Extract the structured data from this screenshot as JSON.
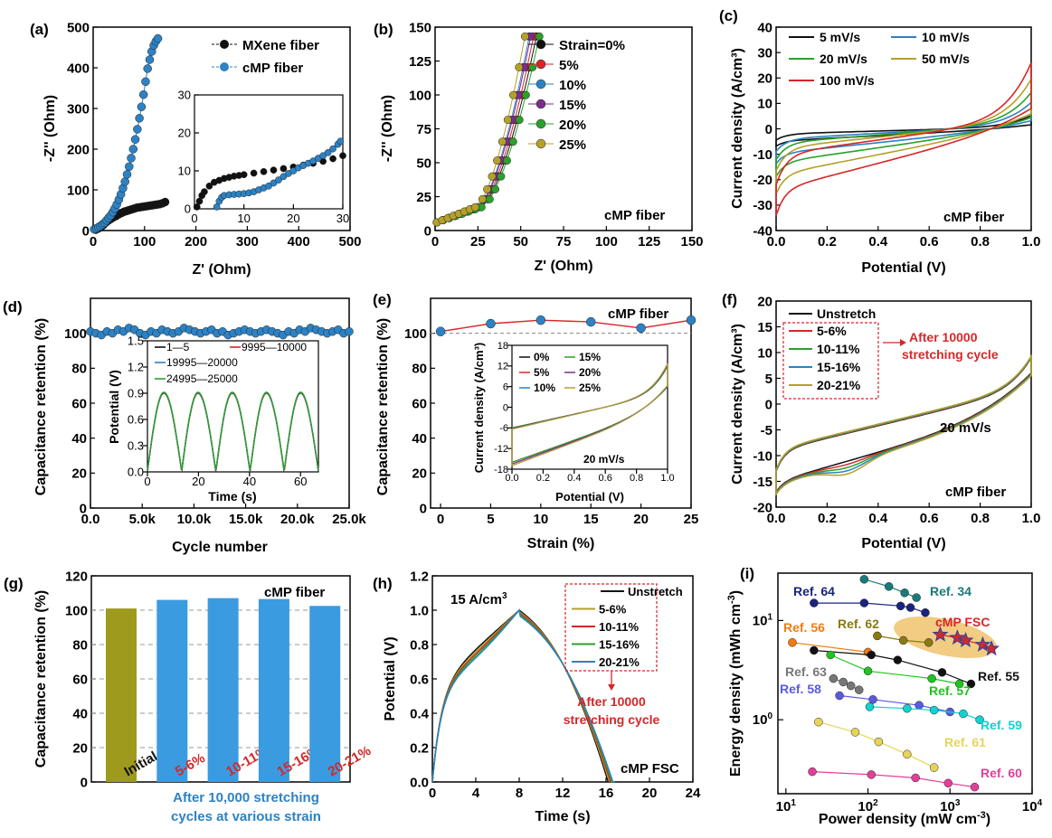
{
  "chart_data": [
    {
      "type": "scatter",
      "label": "(a)",
      "xlabel": "Z' (Ohm)",
      "ylabel": "-Z'' (Ohm)",
      "xlim": [
        0,
        500
      ],
      "ylim": [
        0,
        500
      ],
      "xticks": [
        "0",
        "100",
        "200",
        "300",
        "400",
        "500"
      ],
      "yticks": [
        "0",
        "100",
        "200",
        "300",
        "400",
        "500"
      ],
      "series": [
        {
          "name": "MXene fiber",
          "color": "#111111",
          "x": [
            5,
            10,
            15,
            20,
            25,
            30,
            35,
            40,
            45,
            50,
            55,
            60,
            65,
            70,
            75,
            80,
            85,
            90,
            95,
            100,
            105,
            110,
            115,
            120,
            125,
            130,
            135,
            140
          ],
          "y": [
            2,
            5,
            8,
            14,
            20,
            25,
            29,
            33,
            36,
            40,
            43,
            46,
            48,
            50,
            52,
            54,
            56,
            57,
            58,
            59,
            60,
            61,
            62,
            63,
            64,
            65,
            67,
            70
          ]
        },
        {
          "name": "cMP fiber",
          "color": "#2c82c4",
          "x": [
            2,
            6,
            10,
            14,
            18,
            22,
            26,
            30,
            34,
            38,
            42,
            46,
            50,
            54,
            58,
            62,
            66,
            70,
            74,
            78,
            82,
            86,
            90,
            94,
            98,
            102,
            106,
            110,
            114,
            118,
            122,
            126
          ],
          "y": [
            3,
            5,
            8,
            11,
            15,
            19,
            25,
            31,
            37,
            45,
            54,
            64,
            76,
            89,
            104,
            120,
            138,
            157,
            178,
            200,
            224,
            249,
            276,
            304,
            334,
            366,
            398,
            420,
            440,
            455,
            465,
            472
          ]
        }
      ],
      "inset": {
        "xlim": [
          0,
          30
        ],
        "ylim": [
          0,
          30
        ],
        "xticks": [
          "0",
          "10",
          "20",
          "30"
        ],
        "yticks": [
          "0",
          "10",
          "20",
          "30"
        ],
        "series": [
          {
            "x": [
              0.5,
              1,
              1.5,
              2,
              3,
              4,
              5,
              6,
              7,
              8,
              9,
              10,
              12,
              14,
              16,
              18,
              20,
              22,
              24,
              26,
              28,
              30
            ],
            "y": [
              0.5,
              2,
              3.5,
              4.5,
              6,
              7,
              7.5,
              8,
              8.3,
              8.6,
              8.8,
              9,
              9.4,
              9.8,
              10.2,
              10.6,
              11,
              11.5,
              12,
              12.5,
              13.2,
              14
            ]
          },
          {
            "x": [
              4.5,
              5,
              5.5,
              6,
              7,
              8,
              9,
              10,
              11,
              12,
              13,
              14,
              15,
              16,
              17,
              18,
              19,
              20,
              21,
              22,
              23,
              24,
              25,
              26,
              27,
              28,
              29,
              29.5
            ],
            "y": [
              0.5,
              2,
              3,
              3.5,
              3.7,
              3.8,
              3.9,
              4,
              4.2,
              4.5,
              5,
              5.5,
              6,
              6.8,
              7.6,
              8.5,
              9.3,
              10,
              10.8,
              11.4,
              12,
              12.6,
              13.3,
              14,
              14.8,
              15.8,
              17,
              17.8
            ]
          }
        ]
      }
    },
    {
      "type": "scatter",
      "label": "(b)",
      "xlabel": "Z' (Ohm)",
      "ylabel": "-Z'' (Ohm)",
      "xlim": [
        0,
        150
      ],
      "ylim": [
        0,
        150
      ],
      "xticks": [
        "0",
        "25",
        "50",
        "75",
        "100",
        "125",
        "150"
      ],
      "yticks": [
        "0",
        "25",
        "50",
        "75",
        "100",
        "125",
        "150"
      ],
      "annotation": "cMP fiber",
      "series": [
        {
          "name": "Strain=0%",
          "color": "#111111",
          "offset": 8
        },
        {
          "name": "5%",
          "color": "#d62728",
          "offset": 6
        },
        {
          "name": "10%",
          "color": "#2c82c4",
          "offset": 3
        },
        {
          "name": "15%",
          "color": "#7b2d8e",
          "offset": 4
        },
        {
          "name": "20%",
          "color": "#2ca02c",
          "offset": 10
        },
        {
          "name": "25%",
          "color": "#b5a02a",
          "offset": 0
        }
      ]
    },
    {
      "type": "line",
      "label": "(c)",
      "xlabel": "Potential (V)",
      "ylabel": "Current density (A/cm³)",
      "xlim": [
        0,
        1
      ],
      "ylim": [
        -40,
        40
      ],
      "xticks": [
        "0.0",
        "0.2",
        "0.4",
        "0.6",
        "0.8",
        "1.0"
      ],
      "yticks": [
        "-40",
        "-30",
        "-20",
        "-10",
        "0",
        "10",
        "20",
        "30",
        "40"
      ],
      "annotation": "cMP fiber",
      "series": [
        {
          "name": "5 mV/s",
          "color": "#111111",
          "scale": 0.2
        },
        {
          "name": "10 mV/s",
          "color": "#2c82c4",
          "scale": 0.4
        },
        {
          "name": "20 mV/s",
          "color": "#2ca02c",
          "scale": 0.55
        },
        {
          "name": "50 mV/s",
          "color": "#b5a02a",
          "scale": 0.75
        },
        {
          "name": "100 mV/s",
          "color": "#d62728",
          "scale": 1.0
        }
      ]
    },
    {
      "type": "scatter",
      "label": "(d)",
      "xlabel": "Cycle number",
      "ylabel": "Capacitance retention (%)",
      "xlim": [
        0,
        25000
      ],
      "ylim": [
        0,
        120
      ],
      "xticks": [
        "0.0",
        "5.0k",
        "10.0k",
        "15.0k",
        "20.0k",
        "25.0k"
      ],
      "yticks": [
        "0",
        "20",
        "40",
        "60",
        "80",
        "100"
      ],
      "values": [
        101,
        100,
        99,
        101,
        100,
        102,
        101,
        103,
        102,
        100,
        99,
        101,
        100,
        102,
        101,
        100,
        101,
        103,
        102,
        101,
        100,
        101,
        102,
        100,
        101,
        99,
        100,
        101,
        102,
        101,
        100,
        101,
        102,
        101,
        100,
        99,
        101,
        100,
        102,
        101,
        103,
        102,
        101,
        100,
        101,
        102,
        100,
        101
      ],
      "inset": {
        "xlabel": "Time (s)",
        "ylabel": "Potential (V)",
        "xlim": [
          0,
          67
        ],
        "ylim": [
          0,
          1.5
        ],
        "xticks": [
          "0",
          "20",
          "40",
          "60"
        ],
        "yticks": [
          "0.0",
          "0.3",
          "0.6",
          "0.9",
          "1.2",
          "1.5"
        ],
        "legend": [
          "1—5",
          "9995—10000",
          "19995—20000",
          "24995—25000"
        ],
        "colors": [
          "#111111",
          "#d62728",
          "#2c82c4",
          "#2ca02c"
        ]
      }
    },
    {
      "type": "scatter",
      "label": "(e)",
      "xlabel": "Strain (%)",
      "ylabel": "Capacitance retention (%)",
      "xlim": [
        -1,
        25
      ],
      "ylim": [
        0,
        120
      ],
      "xticks": [
        "0",
        "5",
        "10",
        "15",
        "20",
        "25"
      ],
      "yticks": [
        "0",
        "20",
        "40",
        "60",
        "80",
        "100"
      ],
      "annotation": "cMP fiber",
      "x": [
        0,
        5,
        10,
        15,
        20,
        25
      ],
      "values": [
        101,
        105.5,
        107.5,
        106.5,
        103,
        107.5
      ],
      "inset": {
        "xlabel": "Potential (V)",
        "ylabel": "Current density (A/cm³)",
        "xlim": [
          0,
          1
        ],
        "ylim": [
          -18,
          18
        ],
        "xticks": [
          "0.0",
          "0.2",
          "0.4",
          "0.6",
          "0.8",
          "1.0"
        ],
        "yticks": [
          "-18",
          "-12",
          "-6",
          "0",
          "6",
          "12",
          "18"
        ],
        "annotation": "20 mV/s",
        "legend": [
          "0%",
          "5%",
          "10%",
          "15%",
          "20%",
          "25%"
        ],
        "colors": [
          "#111111",
          "#d62728",
          "#2c82c4",
          "#2ca02c",
          "#7b2d8e",
          "#b5a02a"
        ]
      }
    },
    {
      "type": "line",
      "label": "(f)",
      "xlabel": "Potential (V)",
      "ylabel": "Current density (A/cm³)",
      "xlim": [
        0,
        1
      ],
      "ylim": [
        -20,
        20
      ],
      "xticks": [
        "0.0",
        "0.2",
        "0.4",
        "0.6",
        "0.8",
        "1.0"
      ],
      "yticks": [
        "-20",
        "-15",
        "-10",
        "-5",
        "0",
        "5",
        "10",
        "15",
        "20"
      ],
      "annotations": [
        "After 10000 stretching cycle",
        "20 mV/s",
        "cMP fiber"
      ],
      "series": [
        {
          "name": "Unstretch",
          "color": "#111111"
        },
        {
          "name": "5-6%",
          "color": "#d62728"
        },
        {
          "name": "10-11%",
          "color": "#2ca02c"
        },
        {
          "name": "15-16%",
          "color": "#2c82c4"
        },
        {
          "name": "20-21%",
          "color": "#b5a02a"
        }
      ]
    },
    {
      "type": "bar",
      "label": "(g)",
      "ylabel": "Capacitance retention (%)",
      "ylim": [
        0,
        120
      ],
      "yticks": [
        "0",
        "20",
        "40",
        "60",
        "80",
        "100",
        "120"
      ],
      "categories": [
        "Initial",
        "5-6%",
        "10-11%",
        "15-16%",
        "20-21%"
      ],
      "values": [
        101,
        106,
        107,
        106.5,
        102.5
      ],
      "colors": [
        "#9e9a1e",
        "#3b9be0",
        "#3b9be0",
        "#3b9be0",
        "#3b9be0"
      ],
      "annotation": "cMP fiber",
      "caption": [
        "After 10,000 stretching",
        "cycles at various strain"
      ]
    },
    {
      "type": "line",
      "label": "(h)",
      "xlabel": "Time (s)",
      "ylabel": "Potential (V)",
      "xlim": [
        0,
        24
      ],
      "ylim": [
        0,
        1.2
      ],
      "xticks": [
        "0",
        "4",
        "8",
        "12",
        "16",
        "20",
        "24"
      ],
      "yticks": [
        "0.0",
        "0.2",
        "0.4",
        "0.6",
        "0.8",
        "1.0",
        "1.2"
      ],
      "annotations": [
        "15 A/cm³",
        "After 10000",
        "stretching cycle",
        "cMP FSC"
      ],
      "series": [
        {
          "name": "Unstretch",
          "color": "#111111"
        },
        {
          "name": "5-6%",
          "color": "#b5a02a"
        },
        {
          "name": "10-11%",
          "color": "#d62728"
        },
        {
          "name": "15-16%",
          "color": "#2ca02c"
        },
        {
          "name": "20-21%",
          "color": "#2c82c4"
        }
      ]
    },
    {
      "type": "scatter",
      "label": "(i)",
      "xlabel": "Power density (mW cm⁻³)",
      "ylabel": "Energy density (mWh cm⁻³)",
      "xscale": "log",
      "yscale": "log",
      "xlim": [
        8,
        10000
      ],
      "ylim": [
        0.18,
        30
      ],
      "xticks": [
        "10",
        "100",
        "1000",
        "10000"
      ],
      "xtick_labels": [
        "10¹",
        "10²",
        "10³",
        "10⁴"
      ],
      "ytick_labels": [
        "10⁰",
        "10¹"
      ],
      "series": [
        {
          "name": "Ref. 64",
          "color": "#1a237e",
          "x": [
            22,
            90,
            250,
            330,
            500
          ],
          "y": [
            15,
            15,
            14,
            13.5,
            12
          ]
        },
        {
          "name": "Ref. 34",
          "color": "#1a7a7a",
          "x": [
            90,
            180,
            280,
            390
          ],
          "y": [
            26,
            22,
            19,
            17
          ]
        },
        {
          "name": "Ref. 62",
          "color": "#8a7a10",
          "x": [
            130,
            270,
            550
          ],
          "y": [
            7,
            6.3,
            6
          ]
        },
        {
          "name": "Ref. 56",
          "color": "#f07c10",
          "x": [
            12,
            100
          ],
          "y": [
            6,
            4.8
          ]
        },
        {
          "name": "Ref. 55",
          "color": "#111111",
          "x": [
            22,
            110,
            230,
            800,
            1800
          ],
          "y": [
            5,
            4.5,
            4,
            3,
            2.3
          ]
        },
        {
          "name": "Ref. 57",
          "color": "#22c222",
          "x": [
            35,
            100,
            600,
            1300
          ],
          "y": [
            4.5,
            3.1,
            2.6,
            2.3
          ]
        },
        {
          "name": "Ref. 63",
          "color": "#777777",
          "x": [
            38,
            50,
            62,
            78
          ],
          "y": [
            2.6,
            2.4,
            2.2,
            2.0
          ]
        },
        {
          "name": "Ref. 58",
          "color": "#5a5ae0",
          "x": [
            45,
            115,
            420,
            1000
          ],
          "y": [
            1.75,
            1.6,
            1.4,
            1.2
          ]
        },
        {
          "name": "Ref. 59",
          "color": "#12d2d2",
          "x": [
            105,
            300,
            640,
            1450,
            2300
          ],
          "y": [
            1.35,
            1.3,
            1.25,
            1.15,
            1.0
          ]
        },
        {
          "name": "Ref. 61",
          "color": "#e6d45a",
          "x": [
            25,
            70,
            135,
            300,
            640
          ],
          "y": [
            0.95,
            0.75,
            0.6,
            0.45,
            0.33
          ]
        },
        {
          "name": "Ref. 60",
          "color": "#e0409a",
          "x": [
            21,
            110,
            380,
            950,
            2000
          ],
          "y": [
            0.3,
            0.28,
            0.26,
            0.23,
            0.21
          ]
        },
        {
          "name": "cMP FSC",
          "color": "#d62728",
          "x": [
            760,
            1230,
            1550,
            2500,
            3200
          ],
          "y": [
            7.2,
            6.7,
            6.3,
            5.7,
            5.2
          ]
        }
      ]
    }
  ]
}
